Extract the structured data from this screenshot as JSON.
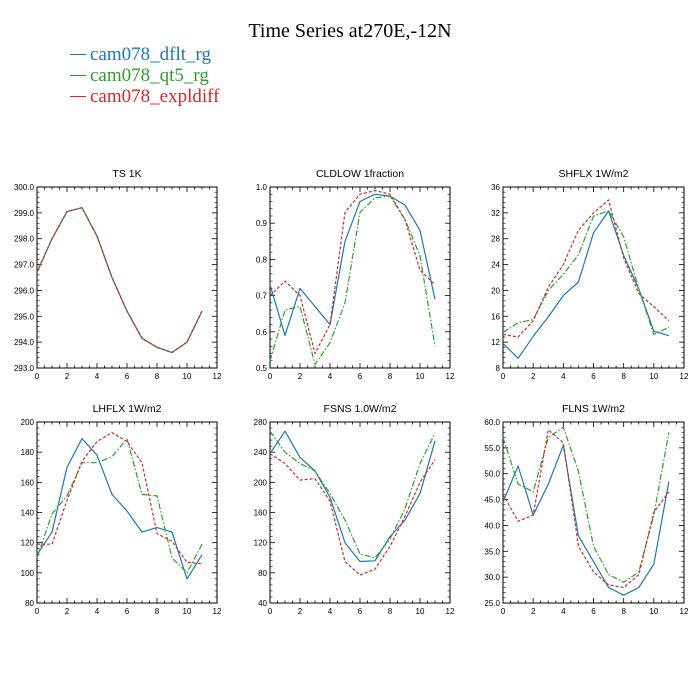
{
  "title": "Time Series at270E,-12N",
  "legend": [
    {
      "name": "cam078_dflt_rg",
      "color": "#1f77b4",
      "dash": ""
    },
    {
      "name": "cam078_qt5_rg",
      "color": "#2ca02c",
      "dash": "6,2,1.5,2"
    },
    {
      "name": "cam078_expldiff",
      "color": "#d62728",
      "dash": "3,2"
    }
  ],
  "chart_data": [
    {
      "type": "line",
      "title": "TS   1K",
      "x": [
        0,
        1,
        2,
        3,
        4,
        5,
        6,
        7,
        8,
        9,
        10,
        11
      ],
      "xlim": [
        0,
        12
      ],
      "xticks": [
        0,
        2,
        4,
        6,
        8,
        10,
        12
      ],
      "ylim": [
        293.0,
        300.0
      ],
      "yticks": [
        "293.0",
        "294.0",
        "295.0",
        "296.0",
        "297.0",
        "298.0",
        "299.0",
        "300.0"
      ],
      "series": [
        {
          "name": "cam078_dflt_rg",
          "values": [
            296.7,
            298.0,
            299.05,
            299.2,
            298.1,
            296.5,
            295.2,
            294.15,
            293.8,
            293.6,
            294.0,
            295.2
          ]
        },
        {
          "name": "cam078_qt5_rg",
          "values": [
            296.7,
            298.0,
            299.05,
            299.2,
            298.1,
            296.5,
            295.2,
            294.15,
            293.8,
            293.6,
            294.0,
            295.2
          ]
        },
        {
          "name": "cam078_expldiff",
          "values": [
            296.7,
            298.0,
            299.05,
            299.2,
            298.1,
            296.5,
            295.2,
            294.15,
            293.8,
            293.6,
            294.0,
            295.2
          ]
        }
      ]
    },
    {
      "type": "line",
      "title": "CLDLOW   1fraction",
      "x": [
        0,
        1,
        2,
        3,
        4,
        5,
        6,
        7,
        8,
        9,
        10,
        11
      ],
      "xlim": [
        0,
        12
      ],
      "xticks": [
        0,
        2,
        4,
        6,
        8,
        10,
        12
      ],
      "ylim": [
        0.5,
        1.0
      ],
      "yticks": [
        "0.5",
        "0.6",
        "0.7",
        "0.8",
        "0.9",
        "1.0"
      ],
      "series": [
        {
          "name": "cam078_dflt_rg",
          "values": [
            0.73,
            0.59,
            0.72,
            0.67,
            0.62,
            0.85,
            0.96,
            0.98,
            0.975,
            0.95,
            0.88,
            0.69
          ]
        },
        {
          "name": "cam078_qt5_rg",
          "values": [
            0.52,
            0.66,
            0.67,
            0.51,
            0.57,
            0.68,
            0.93,
            0.97,
            0.975,
            0.91,
            0.81,
            0.56
          ]
        },
        {
          "name": "cam078_expldiff",
          "values": [
            0.7,
            0.74,
            0.7,
            0.54,
            0.62,
            0.93,
            0.98,
            0.99,
            0.98,
            0.91,
            0.77,
            0.73
          ]
        }
      ]
    },
    {
      "type": "line",
      "title": "SHFLX   1W/m2",
      "x": [
        0,
        1,
        2,
        3,
        4,
        5,
        6,
        7,
        8,
        9,
        10,
        11
      ],
      "xlim": [
        0,
        12
      ],
      "xticks": [
        0,
        2,
        4,
        6,
        8,
        10,
        12
      ],
      "ylim": [
        8,
        36
      ],
      "yticks": [
        "8",
        "12",
        "16",
        "20",
        "24",
        "28",
        "32",
        "36"
      ],
      "series": [
        {
          "name": "cam078_dflt_rg",
          "values": [
            11.8,
            9.5,
            12.9,
            15.9,
            19.2,
            21.3,
            28.9,
            32.3,
            25.4,
            20.2,
            13.7,
            13.0
          ]
        },
        {
          "name": "cam078_qt5_rg",
          "values": [
            13.5,
            15.0,
            15.5,
            20.0,
            22.5,
            25.5,
            31.5,
            32.3,
            28.3,
            20.2,
            13.2,
            14.3
          ]
        },
        {
          "name": "cam078_expldiff",
          "values": [
            13.2,
            12.8,
            15.3,
            20.5,
            24.0,
            29.3,
            32.0,
            34.0,
            25.0,
            19.5,
            17.5,
            15.3
          ]
        }
      ]
    },
    {
      "type": "line",
      "title": "LHFLX   1W/m2",
      "x": [
        0,
        1,
        2,
        3,
        4,
        5,
        6,
        7,
        8,
        9,
        10,
        11
      ],
      "xlim": [
        0,
        12
      ],
      "xticks": [
        0,
        2,
        4,
        6,
        8,
        10,
        12
      ],
      "ylim": [
        80,
        200
      ],
      "yticks": [
        "80",
        "100",
        "120",
        "140",
        "160",
        "180",
        "200"
      ],
      "series": [
        {
          "name": "cam078_dflt_rg",
          "values": [
            112,
            127,
            170,
            189,
            178,
            152,
            141,
            127,
            130,
            127,
            96,
            112
          ]
        },
        {
          "name": "cam078_qt5_rg",
          "values": [
            110,
            139,
            151,
            173,
            173,
            177,
            189,
            152,
            151,
            110,
            100,
            119
          ]
        },
        {
          "name": "cam078_expldiff",
          "values": [
            119,
            119,
            148,
            174,
            187,
            193,
            187,
            173,
            126,
            121,
            107,
            106
          ]
        }
      ]
    },
    {
      "type": "line",
      "title": "FSNS   1.0W/m2",
      "x": [
        0,
        1,
        2,
        3,
        4,
        5,
        6,
        7,
        8,
        9,
        10,
        11
      ],
      "xlim": [
        0,
        12
      ],
      "xticks": [
        0,
        2,
        4,
        6,
        8,
        10,
        12
      ],
      "ylim": [
        40,
        280
      ],
      "yticks": [
        "40",
        "80",
        "120",
        "160",
        "200",
        "240",
        "280"
      ],
      "series": [
        {
          "name": "cam078_dflt_rg",
          "values": [
            238,
            268,
            233,
            215,
            180,
            120,
            95,
            96,
            128,
            150,
            185,
            255
          ]
        },
        {
          "name": "cam078_qt5_rg",
          "values": [
            268,
            240,
            225,
            215,
            185,
            150,
            105,
            100,
            125,
            165,
            225,
            265
          ]
        },
        {
          "name": "cam078_expldiff",
          "values": [
            238,
            225,
            203,
            205,
            175,
            95,
            77,
            85,
            115,
            155,
            200,
            230
          ]
        }
      ]
    },
    {
      "type": "line",
      "title": "FLNS   1W/m2",
      "x": [
        0,
        1,
        2,
        3,
        4,
        5,
        6,
        7,
        8,
        9,
        10,
        11
      ],
      "xlim": [
        0,
        12
      ],
      "xticks": [
        0,
        2,
        4,
        6,
        8,
        10,
        12
      ],
      "ylim": [
        25.0,
        60.0
      ],
      "yticks": [
        "25.0",
        "30.0",
        "35.0",
        "40.0",
        "45.0",
        "50.0",
        "55.0",
        "60.0"
      ],
      "series": [
        {
          "name": "cam078_dflt_rg",
          "values": [
            44.5,
            51.5,
            42.0,
            48.0,
            55.5,
            38.0,
            33.0,
            28.0,
            26.5,
            28.0,
            32.5,
            48.5
          ]
        },
        {
          "name": "cam078_qt5_rg",
          "values": [
            57.0,
            48.0,
            46.5,
            57.0,
            59.0,
            50.5,
            36.0,
            30.5,
            29.0,
            31.0,
            42.0,
            58.0
          ]
        },
        {
          "name": "cam078_expldiff",
          "values": [
            46.0,
            40.8,
            42.0,
            58.5,
            56.0,
            36.0,
            31.0,
            28.5,
            28.0,
            30.5,
            42.5,
            46.5
          ]
        }
      ]
    }
  ]
}
